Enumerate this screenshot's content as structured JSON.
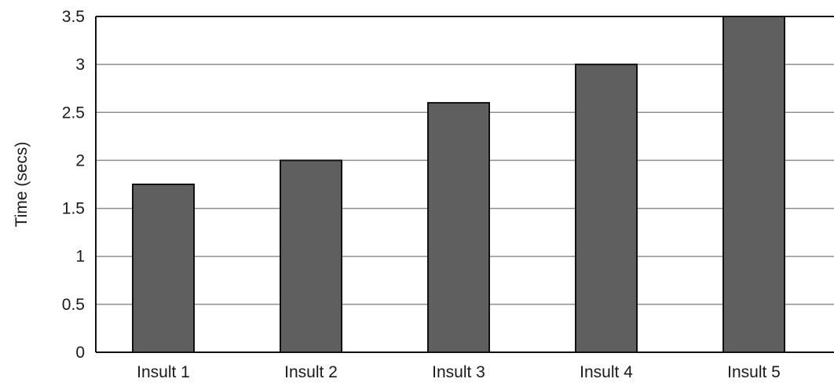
{
  "chart_data": {
    "type": "bar",
    "title": "",
    "xlabel": "",
    "ylabel": "Time (secs)",
    "categories": [
      "Insult 1",
      "Insult 2",
      "Insult 3",
      "Insult 4",
      "Insult 5"
    ],
    "values": [
      1.75,
      2.0,
      2.6,
      3.0,
      3.5
    ],
    "ylim": [
      0,
      3.5
    ],
    "yticks": [
      "0",
      "0.5",
      "1",
      "1.5",
      "2",
      "2.5",
      "3",
      "3.5"
    ],
    "grid": true,
    "legend": "none",
    "colors": {
      "bar_fill": "#5f5f5f",
      "bar_stroke": "#111111",
      "gridline": "#8f8f8f",
      "axis": "#111111"
    }
  }
}
